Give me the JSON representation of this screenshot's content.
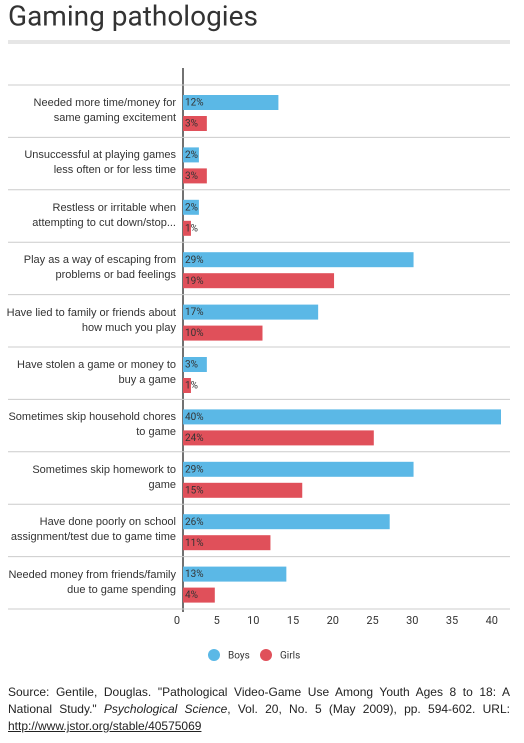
{
  "chart_data": {
    "type": "hbar",
    "title": "Gaming pathologies",
    "categories": [
      "Needed more time/money for same gaming excitement",
      "Unsuccessful at playing games less often or for less time",
      "Restless or irritable when attempting to cut down/stop...",
      "Play as a way of escaping from problems or bad feelings",
      "Have lied to family or friends about how much you play",
      "Have stolen a game or money to buy a game",
      "Sometimes skip household chores to game",
      "Sometimes skip homework to game",
      "Have done poorly on school assignment/test due to game time",
      "Needed money from friends/family due to game spending"
    ],
    "series": [
      {
        "name": "Boys",
        "color": "#5bb8e6",
        "values": [
          12,
          2,
          2,
          29,
          17,
          3,
          40,
          29,
          26,
          13
        ],
        "value_labels": [
          "12%",
          "2%",
          "2%",
          "29%",
          "17%",
          "3%",
          "40%",
          "29%",
          "26%",
          "13%"
        ]
      },
      {
        "name": "Girls",
        "color": "#e0505a",
        "values": [
          3,
          3,
          1,
          19,
          10,
          1,
          24,
          15,
          11,
          4
        ],
        "value_labels": [
          "3%",
          "3%",
          "1%",
          "19%",
          "10%",
          "1%",
          "24%",
          "15%",
          "11%",
          "4%"
        ]
      }
    ],
    "xlim": [
      0,
      40
    ],
    "xticks": [
      0,
      5,
      10,
      15,
      20,
      25,
      30,
      35,
      40
    ],
    "legend": "bottom",
    "source": [
      "Source: Gentile, Douglas. \"Pathological Video-Game Use Among Youth Ages 8 to 18: A National Study.\" ",
      "Psychological Science",
      ", Vol. 20, No. 5 (May 2009), pp. 594-602. URL: ",
      "http://www.jstor.org/stable/40575069"
    ]
  }
}
